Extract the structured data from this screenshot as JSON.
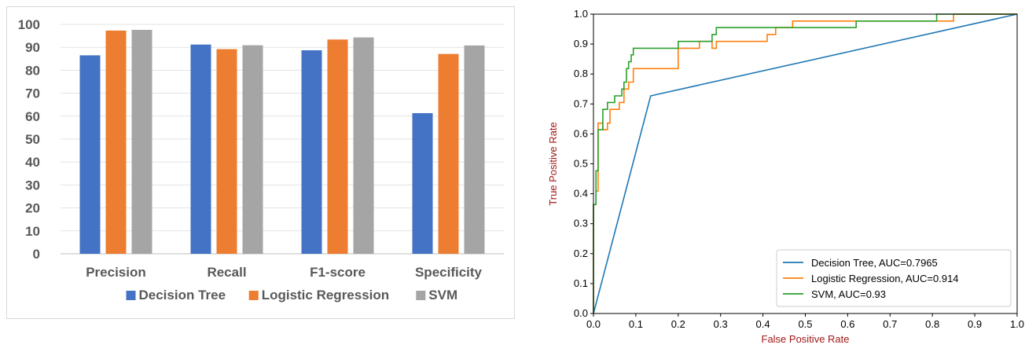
{
  "chart_data": [
    {
      "type": "bar",
      "title": "",
      "xlabel": "",
      "ylabel": "",
      "categories": [
        "Precision",
        "Recall",
        "F1-score",
        "Specificity"
      ],
      "series": [
        {
          "name": "Decision Tree",
          "color": "#4472c4",
          "values": [
            86.5,
            91.2,
            88.7,
            61.3
          ]
        },
        {
          "name": "Logistic Regression",
          "color": "#ed7d31",
          "values": [
            97.3,
            89.2,
            93.4,
            87.1
          ]
        },
        {
          "name": "SVM",
          "color": "#a5a5a5",
          "values": [
            97.6,
            90.9,
            94.3,
            90.8
          ]
        }
      ],
      "ylim": [
        0,
        100
      ],
      "yticks": [
        0,
        10,
        20,
        30,
        40,
        50,
        60,
        70,
        80,
        90,
        100
      ],
      "grid": "horizontal",
      "legend": "bottom"
    },
    {
      "type": "line",
      "title": "",
      "xlabel": "False Positive Rate",
      "ylabel": "True Positive Rate",
      "xlim": [
        0,
        1
      ],
      "ylim": [
        0,
        1
      ],
      "xticks": [
        "0.0",
        "0.1",
        "0.2",
        "0.3",
        "0.4",
        "0.5",
        "0.6",
        "0.7",
        "0.8",
        "0.9",
        "1.0"
      ],
      "yticks": [
        "0.0",
        "0.1",
        "0.2",
        "0.3",
        "0.4",
        "0.5",
        "0.6",
        "0.7",
        "0.8",
        "0.9",
        "1.0"
      ],
      "grid": false,
      "legend": "bottom-right",
      "series": [
        {
          "name": "Decision Tree, AUC=0.7965",
          "color": "#1f77b4",
          "points": [
            [
              0,
              0
            ],
            [
              0.135,
              0.727
            ],
            [
              1,
              1
            ]
          ]
        },
        {
          "name": "Logistic Regression, AUC=0.914",
          "color": "#ff7f0e",
          "points": [
            [
              0,
              0
            ],
            [
              0,
              0.364
            ],
            [
              0.006,
              0.364
            ],
            [
              0.006,
              0.409
            ],
            [
              0.011,
              0.409
            ],
            [
              0.011,
              0.636
            ],
            [
              0.022,
              0.636
            ],
            [
              0.022,
              0.614
            ],
            [
              0.033,
              0.614
            ],
            [
              0.033,
              0.636
            ],
            [
              0.039,
              0.636
            ],
            [
              0.039,
              0.682
            ],
            [
              0.061,
              0.682
            ],
            [
              0.061,
              0.705
            ],
            [
              0.072,
              0.705
            ],
            [
              0.072,
              0.75
            ],
            [
              0.083,
              0.75
            ],
            [
              0.083,
              0.773
            ],
            [
              0.094,
              0.773
            ],
            [
              0.094,
              0.818
            ],
            [
              0.2,
              0.818
            ],
            [
              0.2,
              0.864
            ],
            [
              0.2,
              0.886
            ],
            [
              0.25,
              0.886
            ],
            [
              0.25,
              0.909
            ],
            [
              0.28,
              0.909
            ],
            [
              0.28,
              0.886
            ],
            [
              0.29,
              0.886
            ],
            [
              0.29,
              0.909
            ],
            [
              0.41,
              0.909
            ],
            [
              0.41,
              0.932
            ],
            [
              0.43,
              0.932
            ],
            [
              0.43,
              0.955
            ],
            [
              0.47,
              0.955
            ],
            [
              0.47,
              0.977
            ],
            [
              0.85,
              0.977
            ],
            [
              0.85,
              1
            ],
            [
              1,
              1
            ]
          ]
        },
        {
          "name": "SVM, AUC=0.93",
          "color": "#2ca02c",
          "points": [
            [
              0,
              0
            ],
            [
              0,
              0.364
            ],
            [
              0.006,
              0.364
            ],
            [
              0.006,
              0.477
            ],
            [
              0.011,
              0.477
            ],
            [
              0.011,
              0.614
            ],
            [
              0.022,
              0.614
            ],
            [
              0.022,
              0.682
            ],
            [
              0.033,
              0.682
            ],
            [
              0.033,
              0.705
            ],
            [
              0.05,
              0.705
            ],
            [
              0.05,
              0.727
            ],
            [
              0.067,
              0.727
            ],
            [
              0.067,
              0.75
            ],
            [
              0.072,
              0.75
            ],
            [
              0.072,
              0.773
            ],
            [
              0.078,
              0.773
            ],
            [
              0.078,
              0.818
            ],
            [
              0.083,
              0.818
            ],
            [
              0.083,
              0.841
            ],
            [
              0.089,
              0.841
            ],
            [
              0.089,
              0.864
            ],
            [
              0.094,
              0.864
            ],
            [
              0.094,
              0.886
            ],
            [
              0.2,
              0.886
            ],
            [
              0.2,
              0.909
            ],
            [
              0.28,
              0.909
            ],
            [
              0.28,
              0.932
            ],
            [
              0.29,
              0.932
            ],
            [
              0.29,
              0.955
            ],
            [
              0.62,
              0.955
            ],
            [
              0.62,
              0.977
            ],
            [
              0.81,
              0.977
            ],
            [
              0.81,
              1
            ],
            [
              1,
              1
            ]
          ]
        }
      ]
    }
  ]
}
